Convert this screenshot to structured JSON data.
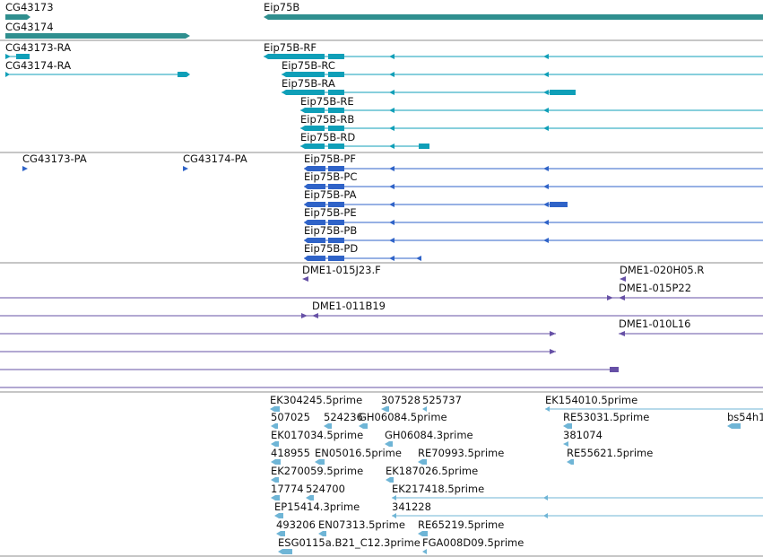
{
  "colors": {
    "gene": "#2f8f8f",
    "transcript": "#0f9fb8",
    "protein": "#2f63c8",
    "clone": "#6650a6",
    "est": "#6fb5d6",
    "divider": "#8e8e8e"
  },
  "tracks": {
    "genes": {
      "labels": [
        "CG43173",
        "CG43174",
        "Eip75B"
      ]
    },
    "transcripts": {
      "labels": [
        "CG43173-RA",
        "CG43174-RA",
        "Eip75B-RF",
        "Eip75B-RC",
        "Eip75B-RA",
        "Eip75B-RE",
        "Eip75B-RB",
        "Eip75B-RD"
      ]
    },
    "proteins": {
      "labels": [
        "CG43173-PA",
        "CG43174-PA",
        "Eip75B-PF",
        "Eip75B-PC",
        "Eip75B-PA",
        "Eip75B-PE",
        "Eip75B-PB",
        "Eip75B-PD"
      ]
    },
    "clones": {
      "labels": [
        "DME1-015J23.F",
        "DME1-020H05.R",
        "DME1-015P22",
        "DME1-011B19",
        "DME1-010L16"
      ]
    },
    "ests": {
      "labels": [
        "EK304245.5prime",
        "307528",
        "525737",
        "EK154010.5prime",
        "507025",
        "524236",
        "GH06084.5prime",
        "RE53031.5prime",
        "bs54h1",
        "EK017034.5prime",
        "GH06084.3prime",
        "381074",
        "418955",
        "EN05016.5prime",
        "RE70993.5prime",
        "RE55621.5prime",
        "EK270059.5prime",
        "EK187026.5prime",
        "17774",
        "524700",
        "EK217418.5prime",
        "EP15414.3prime",
        "341228",
        "493206",
        "EN07313.5prime",
        "RE65219.5prime",
        "ESG0115a.B21_C12.3prime",
        "FGA008D09.5prime"
      ]
    }
  }
}
